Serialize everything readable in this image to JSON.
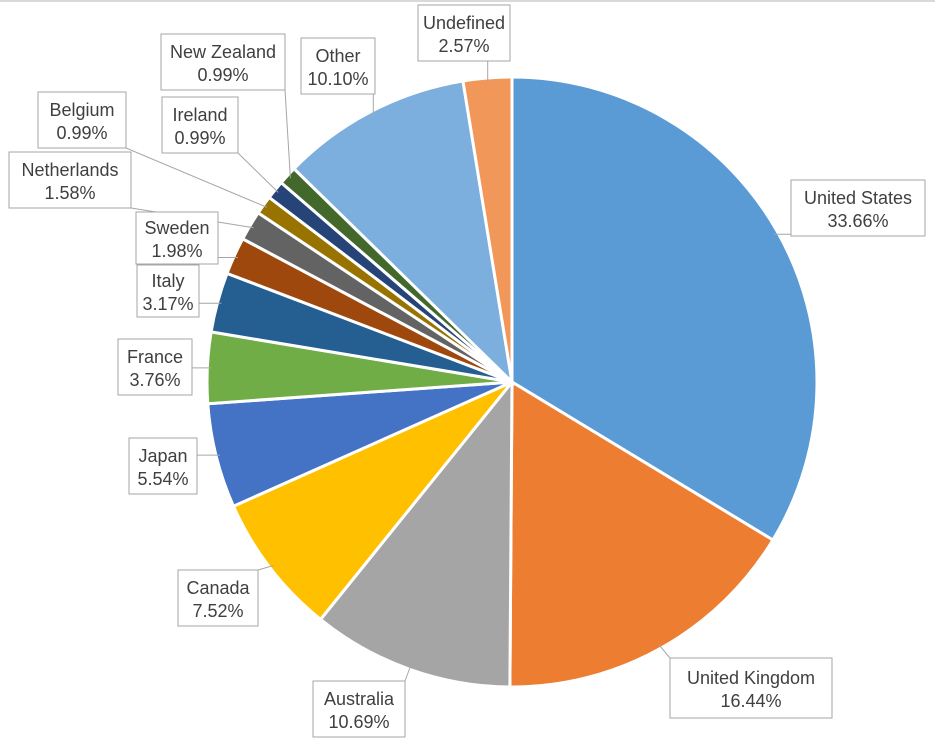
{
  "chart_data": {
    "type": "pie",
    "title": "",
    "legend": "none",
    "slices": [
      {
        "label": "United States",
        "value": 33.66,
        "value_label": "33.66%",
        "color": "#5B9BD5"
      },
      {
        "label": "United Kingdom",
        "value": 16.44,
        "value_label": "16.44%",
        "color": "#ED7D31"
      },
      {
        "label": "Australia",
        "value": 10.69,
        "value_label": "10.69%",
        "color": "#A5A5A5"
      },
      {
        "label": "Canada",
        "value": 7.52,
        "value_label": "7.52%",
        "color": "#FFC000"
      },
      {
        "label": "Japan",
        "value": 5.54,
        "value_label": "5.54%",
        "color": "#4472C4"
      },
      {
        "label": "France",
        "value": 3.76,
        "value_label": "3.76%",
        "color": "#70AD47"
      },
      {
        "label": "Italy",
        "value": 3.17,
        "value_label": "3.17%",
        "color": "#255E91"
      },
      {
        "label": "Sweden",
        "value": 1.98,
        "value_label": "1.98%",
        "color": "#9E480E"
      },
      {
        "label": "Netherlands",
        "value": 1.58,
        "value_label": "1.58%",
        "color": "#636363"
      },
      {
        "label": "Belgium",
        "value": 0.99,
        "value_label": "0.99%",
        "color": "#997300"
      },
      {
        "label": "Ireland",
        "value": 0.99,
        "value_label": "0.99%",
        "color": "#264478"
      },
      {
        "label": "New Zealand",
        "value": 0.99,
        "value_label": "0.99%",
        "color": "#43682B"
      },
      {
        "label": "Other",
        "value": 10.1,
        "value_label": "10.10%",
        "color": "#7CAFDD"
      },
      {
        "label": "Undefined",
        "value": 2.57,
        "value_label": "2.57%",
        "color": "#F1975A"
      }
    ]
  }
}
